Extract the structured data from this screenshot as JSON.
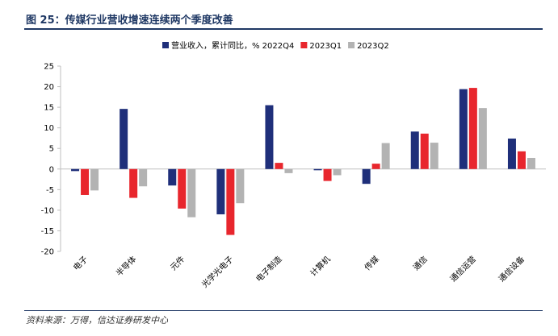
{
  "figure": {
    "title": "图 25：传媒行业营收增速连续两个季度改善",
    "source": "资料来源：万得，信达证券研发中心"
  },
  "colors": {
    "series": [
      "#1f2f7a",
      "#e8262d",
      "#b3b3b3"
    ],
    "axis": "#bfbfbf",
    "title": "#1f3864"
  },
  "chart_data": {
    "type": "bar",
    "title": "",
    "xlabel": "",
    "ylabel": "",
    "ylim": [
      -20,
      25
    ],
    "yticks": [
      25,
      20,
      15,
      10,
      5,
      0,
      -5,
      -10,
      -15,
      -20
    ],
    "legend_position": "top",
    "categories": [
      "电子",
      "半导体",
      "元件",
      "光学光电子",
      "电子制造",
      "计算机",
      "传媒",
      "通信",
      "通信运营",
      "通信设备"
    ],
    "series": [
      {
        "name": "营业收入，累计同比，% 2022Q4",
        "values": [
          -0.5,
          14.6,
          -4.0,
          -11.0,
          15.5,
          -0.3,
          -3.6,
          9.1,
          19.4,
          7.4
        ]
      },
      {
        "name": "2023Q1",
        "values": [
          -6.3,
          -7.0,
          -9.6,
          -16.0,
          1.5,
          -2.9,
          1.3,
          8.6,
          19.7,
          4.3
        ]
      },
      {
        "name": "2023Q2",
        "values": [
          -5.2,
          -4.2,
          -11.7,
          -8.3,
          -1.0,
          -1.5,
          6.3,
          6.4,
          14.8,
          2.7
        ]
      }
    ]
  }
}
